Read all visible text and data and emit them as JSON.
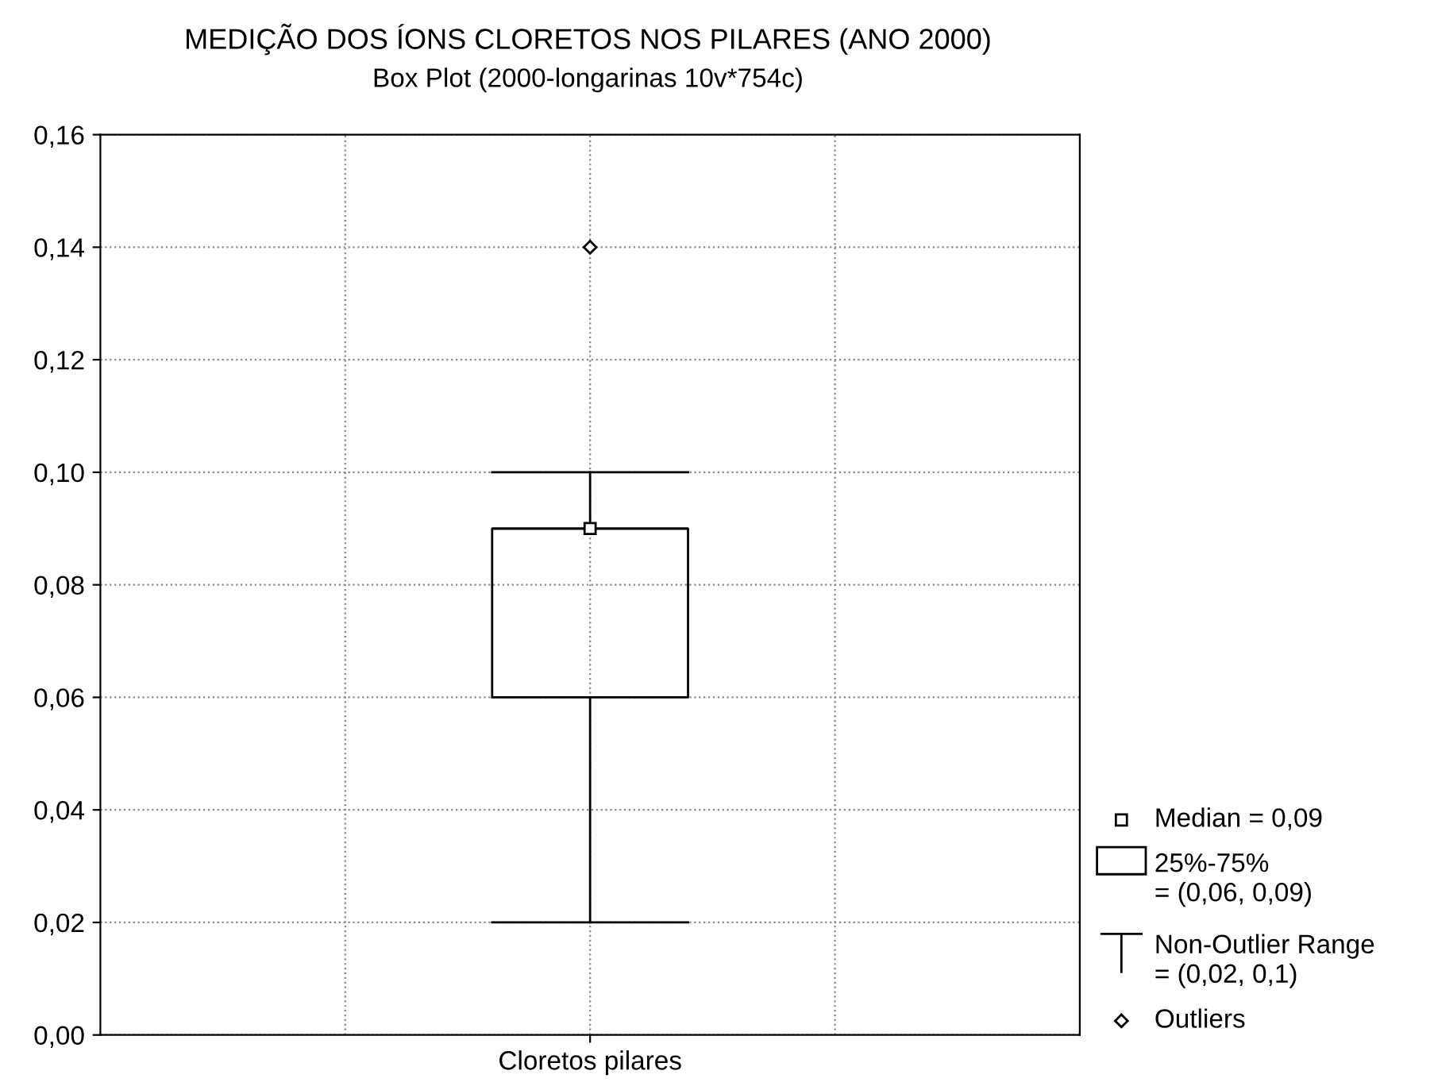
{
  "chart_data": {
    "type": "box",
    "title": "MEDIÇÃO DOS ÍONS CLORETOS NOS PILARES (ANO 2000)",
    "subtitle": "Box Plot (2000-longarinas 10v*754c)",
    "categories": [
      "Cloretos pilares"
    ],
    "boxes": [
      {
        "low": 0.02,
        "q1": 0.06,
        "median": 0.09,
        "q3": 0.09,
        "high": 0.1,
        "outliers": [
          0.14
        ]
      }
    ],
    "color": "#000000",
    "ylim": [
      0,
      0.16
    ],
    "yticks": [
      {
        "value": 0,
        "label": "0,00"
      },
      {
        "value": 0.02,
        "label": "0,02"
      },
      {
        "value": 0.04,
        "label": "0,04"
      },
      {
        "value": 0.06,
        "label": "0,06"
      },
      {
        "value": 0.08,
        "label": "0,08"
      },
      {
        "value": 0.1,
        "label": "0,10"
      },
      {
        "value": 0.12,
        "label": "0,12"
      },
      {
        "value": 0.14,
        "label": "0,14"
      },
      {
        "value": 0.16,
        "label": "0,16"
      }
    ],
    "grid": true,
    "annotations": [
      "Median = 0,09",
      "25%-75%\n= (0,06, 0,09)",
      "Non-Outlier Range\n= (0,02, 0,1)",
      "Outliers"
    ]
  }
}
